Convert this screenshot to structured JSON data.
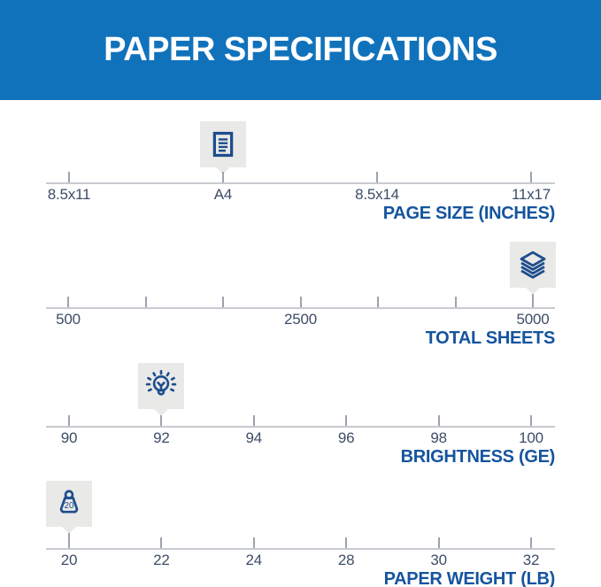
{
  "header": {
    "title": "PAPER SPECIFICATIONS"
  },
  "colors": {
    "banner_blue": "#1172BC",
    "icon_navy": "#1D4D8D",
    "scale_title_blue": "#15549E",
    "tick_label_slate": "#3E4D68",
    "axis_gray": "#C7CBD0",
    "tick_gray": "#9CA3AD",
    "marker_box_gray": "#E9E9E7"
  },
  "scales": [
    {
      "title": "PAGE SIZE (INCHES)",
      "tick_labels": [
        "8.5x11",
        "A4",
        "8.5x14",
        "11x17"
      ],
      "selected": "A4",
      "marker_index": 1,
      "marker_icon": "document-icon"
    },
    {
      "title": "TOTAL SHEETS",
      "tick_labels": [
        "500",
        "",
        "",
        "2500",
        "",
        "",
        "5000"
      ],
      "selected": "5000",
      "marker_index": 6,
      "marker_icon": "sheets-stack-icon"
    },
    {
      "title": "BRIGHTNESS (GE)",
      "tick_labels": [
        "90",
        "92",
        "94",
        "96",
        "98",
        "100"
      ],
      "selected": "92",
      "marker_index": 1,
      "marker_icon": "lightbulb-icon"
    },
    {
      "title": "PAPER WEIGHT (LB)",
      "tick_labels": [
        "20",
        "22",
        "24",
        "28",
        "30",
        "32"
      ],
      "selected": "20",
      "marker_index": 0,
      "marker_icon": "weight-icon",
      "marker_value": "20"
    }
  ],
  "chart_data": {
    "type": "table",
    "title": "PAPER SPECIFICATIONS",
    "rows": [
      {
        "attribute": "PAGE SIZE (INCHES)",
        "scale": [
          "8.5x11",
          "A4",
          "8.5x14",
          "11x17"
        ],
        "selected": "A4"
      },
      {
        "attribute": "TOTAL SHEETS",
        "scale": [
          500,
          2500,
          5000
        ],
        "selected": 5000
      },
      {
        "attribute": "BRIGHTNESS (GE)",
        "scale": [
          90,
          92,
          94,
          96,
          98,
          100
        ],
        "selected": 92
      },
      {
        "attribute": "PAPER WEIGHT (LB)",
        "scale": [
          20,
          22,
          24,
          28,
          30,
          32
        ],
        "selected": 20
      }
    ],
    "layout": {
      "orientation": "horizontal-number-lines",
      "marker_position": "above-axis",
      "titles_alignment": "right"
    }
  }
}
